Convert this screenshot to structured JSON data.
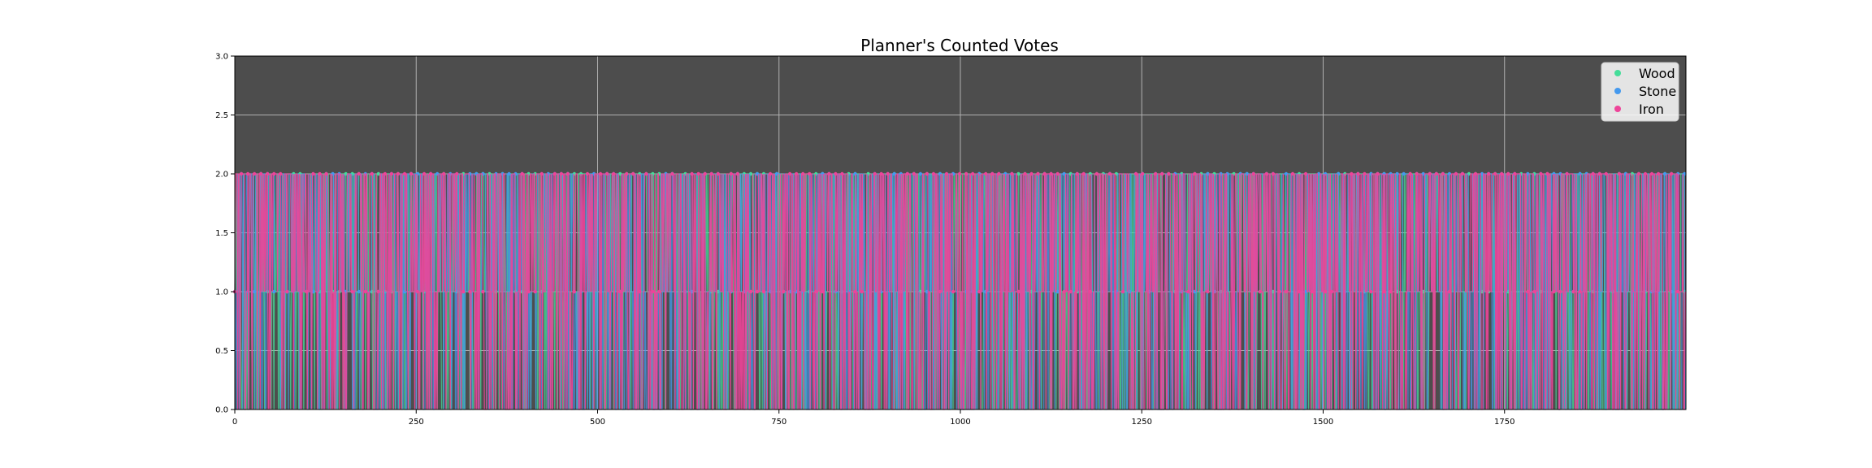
{
  "chart_data": {
    "type": "line",
    "title": "Planner's Counted Votes",
    "xlabel": "",
    "ylabel": "",
    "xlim": [
      0,
      2000
    ],
    "ylim": [
      0,
      3.0
    ],
    "x_ticks": [
      "0",
      "250",
      "500",
      "750",
      "1000",
      "1250",
      "1500",
      "1750"
    ],
    "y_ticks": [
      "0.0",
      "0.5",
      "1.0",
      "1.5",
      "2.0",
      "2.5",
      "3.0"
    ],
    "x_tick_values": [
      0,
      250,
      500,
      750,
      1000,
      1250,
      1500,
      1750
    ],
    "y_tick_values": [
      0,
      0.5,
      1.0,
      1.5,
      2.0,
      2.5,
      3.0
    ],
    "grid": true,
    "legend_position": "top-right",
    "background_color": "#4d4d4d",
    "grid_color": "#b0b0b0",
    "series": [
      {
        "name": "Wood",
        "color": "#44dd99",
        "generator": "seed-101",
        "allowed_values": [
          0,
          1,
          2
        ],
        "n_points": 2000
      },
      {
        "name": "Stone",
        "color": "#4499ee",
        "generator": "seed-202",
        "allowed_values": [
          0,
          1,
          2
        ],
        "n_points": 2000
      },
      {
        "name": "Iron",
        "color": "#ee4499",
        "generator": "seed-303",
        "allowed_values": [
          0,
          1,
          2
        ],
        "n_points": 2000
      }
    ]
  }
}
